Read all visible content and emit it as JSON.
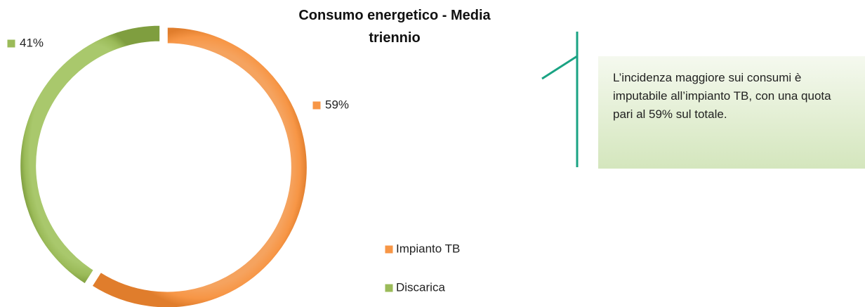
{
  "chart_data": {
    "type": "pie",
    "title": "Consumo energetico - Media triennio",
    "categories": [
      "Impianto TB",
      "Discarica"
    ],
    "values": [
      59,
      41
    ],
    "value_labels": [
      "59%",
      "41%"
    ],
    "colors": [
      "#f79646",
      "#9bbb59"
    ],
    "annotation": "L’incidenza maggiore sui consumi è imputabile all’impianto TB, con una quota pari al 59% sul totale."
  }
}
